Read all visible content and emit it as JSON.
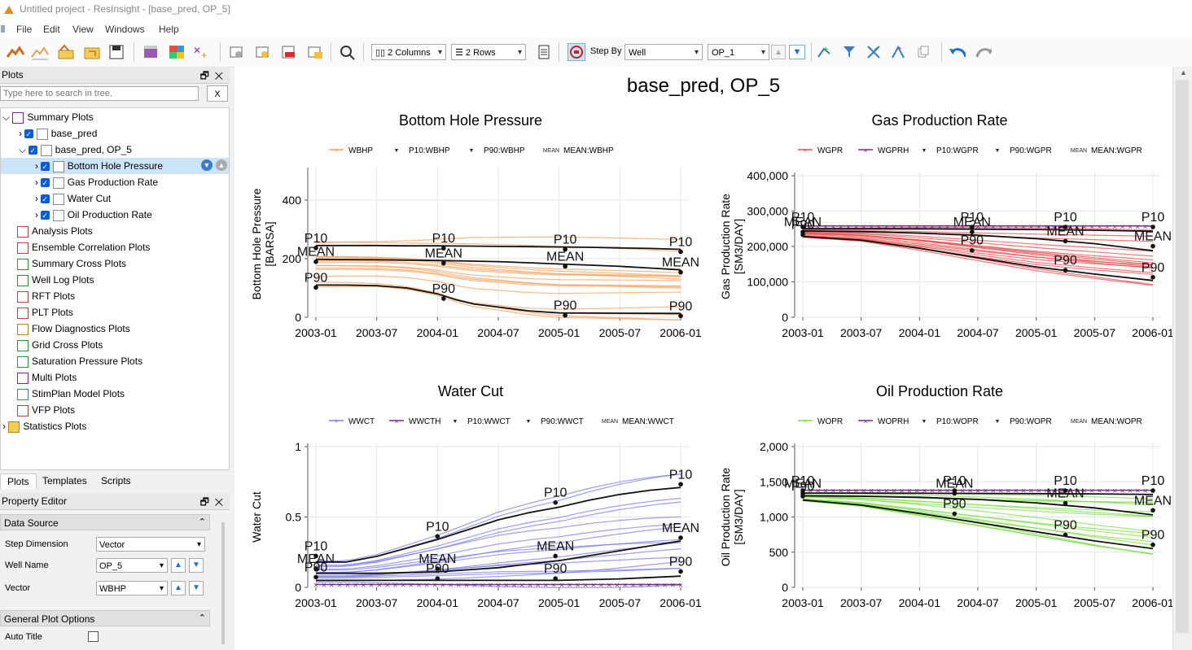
{
  "window": {
    "title": "Untitled project - ResInsight - [base_pred, OP_5]"
  },
  "menu": [
    "File",
    "Edit",
    "View",
    "Windows",
    "Help"
  ],
  "toolbar": {
    "columns": "2 Columns",
    "rows": "2 Rows",
    "step_by_label": "Step By",
    "step_by_value": "Well",
    "well_value": "OP_1"
  },
  "plots_panel": {
    "title": "Plots",
    "search_placeholder": "Type here to search in tree.",
    "clear": "X",
    "tree": [
      "Summary Plots",
      "base_pred",
      "base_pred, OP_5",
      "Bottom Hole Pressure",
      "Gas Production Rate",
      "Water Cut",
      "Oil Production Rate",
      "Analysis Plots",
      "Ensemble Correlation Plots",
      "Summary Cross Plots",
      "Well Log Plots",
      "RFT Plots",
      "PLT Plots",
      "Flow Diagnostics Plots",
      "Grid Cross Plots",
      "Saturation Pressure Plots",
      "Multi Plots",
      "StimPlan Model Plots",
      "VFP Plots",
      "Statistics Plots"
    ]
  },
  "tabs": [
    "Plots",
    "Templates",
    "Scripts"
  ],
  "property_editor": {
    "title": "Property Editor",
    "data_source": "Data Source",
    "step_dimension_label": "Step Dimension",
    "step_dimension_value": "Vector",
    "well_name_label": "Well Name",
    "well_name_value": "OP_5",
    "vector_label": "Vector",
    "vector_value": "WBHP",
    "general_plot_options": "General Plot Options",
    "auto_title_label": "Auto Title"
  },
  "multiplot": {
    "title": "base_pred, OP_5"
  },
  "colors": {
    "wbhp": "#f5a25d",
    "wgpr": "#e74c4c",
    "wwct": "#7b7ee8",
    "wopr": "#7ee04a",
    "history": "#7a2a8a",
    "stat": "#111111"
  },
  "chart_data": [
    {
      "type": "line",
      "title": "Bottom Hole Pressure",
      "ylabel": "Bottom Hole Pressure",
      "yunit": "[BARSA]",
      "ylim": [
        0,
        500
      ],
      "yticks": [
        "0",
        "200",
        "400"
      ],
      "xticks": [
        "2003-01",
        "2003-07",
        "2004-01",
        "2004-07",
        "2005-01",
        "2005-07",
        "2006-01"
      ],
      "legend": [
        "WBHP",
        "P10:WBHP",
        "P90:WBHP",
        "MEAN:WBHP"
      ],
      "history": false,
      "series": [
        {
          "name": "P10:WBHP",
          "x": [
            2003.0,
            2003.25,
            2003.5,
            2003.75,
            2004.0,
            2004.25,
            2004.5,
            2004.75,
            2005.0,
            2005.25,
            2005.5,
            2005.75,
            2006.0
          ],
          "values": [
            245,
            245,
            245,
            244,
            244,
            243,
            242,
            241,
            240,
            239,
            237,
            235,
            232
          ]
        },
        {
          "name": "MEAN:WBHP",
          "x": [
            2003.0,
            2003.25,
            2003.5,
            2003.75,
            2004.0,
            2004.25,
            2004.5,
            2004.75,
            2005.0,
            2005.25,
            2005.5,
            2005.75,
            2006.0
          ],
          "values": [
            198,
            197,
            196,
            195,
            194,
            192,
            190,
            186,
            182,
            178,
            174,
            168,
            162
          ]
        },
        {
          "name": "P90:WBHP",
          "x": [
            2003.0,
            2003.25,
            2003.5,
            2003.75,
            2004.0,
            2004.15,
            2004.3,
            2004.5,
            2004.75,
            2005.0,
            2005.5,
            2006.0
          ],
          "values": [
            110,
            110,
            108,
            100,
            80,
            60,
            45,
            35,
            22,
            15,
            14,
            13
          ]
        }
      ],
      "labels": [
        {
          "text": "P10",
          "x": 2003.0,
          "y": 245
        },
        {
          "text": "MEAN",
          "x": 2003.0,
          "y": 198
        },
        {
          "text": "P90",
          "x": 2003.0,
          "y": 110
        },
        {
          "text": "P10",
          "x": 2004.05,
          "y": 244
        },
        {
          "text": "MEAN",
          "x": 2004.05,
          "y": 193
        },
        {
          "text": "P90",
          "x": 2004.05,
          "y": 72
        },
        {
          "text": "P10",
          "x": 2005.05,
          "y": 240
        },
        {
          "text": "MEAN",
          "x": 2005.05,
          "y": 182
        },
        {
          "text": "P90",
          "x": 2005.05,
          "y": 15
        },
        {
          "text": "P10",
          "x": 2006.0,
          "y": 232
        },
        {
          "text": "MEAN",
          "x": 2006.0,
          "y": 162
        },
        {
          "text": "P90",
          "x": 2006.0,
          "y": 13
        }
      ]
    },
    {
      "type": "line",
      "title": "Gas Production Rate",
      "ylabel": "Gas Production Rate",
      "yunit": "[SM3/DAY]",
      "ylim": [
        0,
        400000
      ],
      "yticks": [
        "0",
        "100,000",
        "200,000",
        "300,000",
        "400,000"
      ],
      "xticks": [
        "2003-01",
        "2003-07",
        "2004-01",
        "2004-07",
        "2005-01",
        "2005-07",
        "2006-01"
      ],
      "legend": [
        "WGPR",
        "WGPRH",
        "P10:WGPR",
        "P90:WGPR",
        "MEAN:WGPR"
      ],
      "history": true,
      "history_value": 258000,
      "series": [
        {
          "name": "P10:WGPR",
          "x": [
            2003.0,
            2003.5,
            2004.0,
            2004.5,
            2005.0,
            2005.5,
            2006.0
          ],
          "values": [
            250000,
            250000,
            250000,
            249000,
            248000,
            246000,
            243000
          ]
        },
        {
          "name": "MEAN:WGPR",
          "x": [
            2003.0,
            2003.5,
            2004.0,
            2004.5,
            2005.0,
            2005.5,
            2006.0
          ],
          "values": [
            244000,
            242000,
            238000,
            232000,
            222000,
            208000,
            188000
          ]
        },
        {
          "name": "P90:WGPR",
          "x": [
            2003.0,
            2003.5,
            2004.0,
            2004.5,
            2005.0,
            2005.5,
            2006.0
          ],
          "values": [
            228000,
            218000,
            195000,
            168000,
            142000,
            122000,
            104000
          ]
        }
      ],
      "labels": [
        {
          "text": "P10",
          "x": 2003.0,
          "y": 262000
        },
        {
          "text": "MEAN",
          "x": 2003.0,
          "y": 248000
        },
        {
          "text": "P90",
          "x": 2003.0,
          "y": 240000
        },
        {
          "text": "P10",
          "x": 2004.45,
          "y": 262000
        },
        {
          "text": "MEAN",
          "x": 2004.45,
          "y": 248000
        },
        {
          "text": "P90",
          "x": 2004.45,
          "y": 196000
        },
        {
          "text": "P10",
          "x": 2005.25,
          "y": 262000
        },
        {
          "text": "MEAN",
          "x": 2005.25,
          "y": 222000
        },
        {
          "text": "P90",
          "x": 2005.25,
          "y": 140000
        },
        {
          "text": "P10",
          "x": 2006.0,
          "y": 262000
        },
        {
          "text": "MEAN",
          "x": 2006.0,
          "y": 208000
        },
        {
          "text": "P90",
          "x": 2006.0,
          "y": 120000
        }
      ]
    },
    {
      "type": "line",
      "title": "Water Cut",
      "ylabel": "Water Cut",
      "yunit": "",
      "ylim": [
        0,
        1
      ],
      "yticks": [
        "0",
        "0.5",
        "1"
      ],
      "xticks": [
        "2003-01",
        "2003-07",
        "2004-01",
        "2004-07",
        "2005-01",
        "2005-07",
        "2006-01"
      ],
      "legend": [
        "WWCT",
        "WWCTH",
        "P10:WWCT",
        "P90:WWCT",
        "MEAN:WWCT"
      ],
      "history": true,
      "history_value": 0.02,
      "series": [
        {
          "name": "P10:WWCT",
          "x": [
            2003.0,
            2003.25,
            2003.5,
            2003.75,
            2004.0,
            2004.25,
            2004.5,
            2004.75,
            2005.0,
            2005.25,
            2005.5,
            2005.75,
            2006.0
          ],
          "values": [
            0.18,
            0.18,
            0.22,
            0.28,
            0.34,
            0.41,
            0.48,
            0.53,
            0.57,
            0.62,
            0.66,
            0.69,
            0.71
          ]
        },
        {
          "name": "MEAN:WWCT",
          "x": [
            2003.0,
            2003.5,
            2004.0,
            2004.5,
            2005.0,
            2005.5,
            2006.0
          ],
          "values": [
            0.1,
            0.1,
            0.11,
            0.14,
            0.19,
            0.26,
            0.33
          ]
        },
        {
          "name": "P90:WWCT",
          "x": [
            2003.0,
            2003.5,
            2004.0,
            2004.5,
            2005.0,
            2005.5,
            2006.0
          ],
          "values": [
            0.05,
            0.05,
            0.05,
            0.05,
            0.05,
            0.06,
            0.08
          ]
        }
      ],
      "labels": [
        {
          "text": "P10",
          "x": 2003.0,
          "y": 0.24
        },
        {
          "text": "MEAN",
          "x": 2003.0,
          "y": 0.15
        },
        {
          "text": "P90",
          "x": 2003.0,
          "y": 0.09
        },
        {
          "text": "P10",
          "x": 2004.0,
          "y": 0.38
        },
        {
          "text": "MEAN",
          "x": 2004.0,
          "y": 0.15
        },
        {
          "text": "P90",
          "x": 2004.0,
          "y": 0.08
        },
        {
          "text": "P10",
          "x": 2004.97,
          "y": 0.62
        },
        {
          "text": "MEAN",
          "x": 2004.97,
          "y": 0.24
        },
        {
          "text": "P90",
          "x": 2004.97,
          "y": 0.08
        },
        {
          "text": "P10",
          "x": 2006.0,
          "y": 0.75
        },
        {
          "text": "MEAN",
          "x": 2006.0,
          "y": 0.37
        },
        {
          "text": "P90",
          "x": 2006.0,
          "y": 0.13
        }
      ]
    },
    {
      "type": "line",
      "title": "Oil Production Rate",
      "ylabel": "Oil Production Rate",
      "yunit": "[SM3/DAY]",
      "ylim": [
        0,
        2000
      ],
      "yticks": [
        "0",
        "500",
        "1,000",
        "1,500",
        "2,000"
      ],
      "xticks": [
        "2003-01",
        "2003-07",
        "2004-01",
        "2004-07",
        "2005-01",
        "2005-07",
        "2006-01"
      ],
      "legend": [
        "WOPR",
        "WOPRH",
        "P10:WOPR",
        "P90:WOPR",
        "MEAN:WOPR"
      ],
      "history": true,
      "history_value": 1380,
      "series": [
        {
          "name": "P10:WOPR",
          "x": [
            2003.0,
            2003.5,
            2004.0,
            2004.5,
            2005.0,
            2005.5,
            2006.0
          ],
          "values": [
            1340,
            1340,
            1338,
            1335,
            1332,
            1328,
            1320
          ]
        },
        {
          "name": "MEAN:WOPR",
          "x": [
            2003.0,
            2003.5,
            2004.0,
            2004.5,
            2005.0,
            2005.5,
            2006.0
          ],
          "values": [
            1300,
            1295,
            1280,
            1250,
            1200,
            1130,
            1030
          ]
        },
        {
          "name": "P90:WOPR",
          "x": [
            2003.0,
            2003.5,
            2004.0,
            2004.5,
            2005.0,
            2005.5,
            2006.0
          ],
          "values": [
            1240,
            1170,
            1050,
            920,
            790,
            660,
            550
          ]
        }
      ],
      "labels": [
        {
          "text": "P10",
          "x": 2003.0,
          "y": 1410
        },
        {
          "text": "MEAN",
          "x": 2003.0,
          "y": 1370
        },
        {
          "text": "P90",
          "x": 2003.0,
          "y": 1330
        },
        {
          "text": "P10",
          "x": 2004.3,
          "y": 1410
        },
        {
          "text": "MEAN",
          "x": 2004.3,
          "y": 1370
        },
        {
          "text": "P90",
          "x": 2004.3,
          "y": 1080
        },
        {
          "text": "P10",
          "x": 2005.25,
          "y": 1410
        },
        {
          "text": "MEAN",
          "x": 2005.25,
          "y": 1230
        },
        {
          "text": "P90",
          "x": 2005.25,
          "y": 780
        },
        {
          "text": "P10",
          "x": 2006.0,
          "y": 1410
        },
        {
          "text": "MEAN",
          "x": 2006.0,
          "y": 1130
        },
        {
          "text": "P90",
          "x": 2006.0,
          "y": 640
        }
      ]
    }
  ]
}
